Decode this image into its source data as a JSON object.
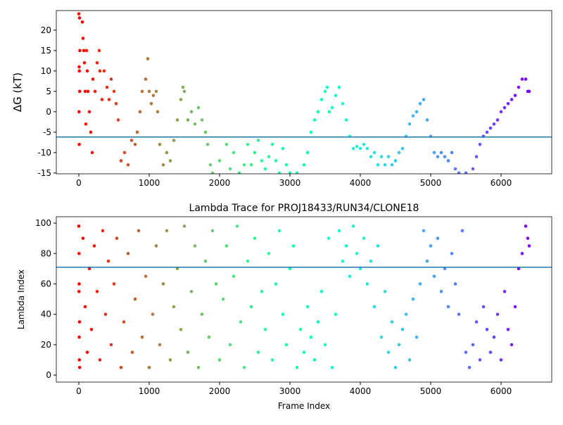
{
  "chart_data": [
    {
      "type": "scatter",
      "ylabel": "ΔG (kT)",
      "colormap": "rainbow_r",
      "clim": [
        0,
        6400
      ],
      "hline": -6.2,
      "hline_color": "#1f77b4",
      "xlim": [
        -320,
        6720
      ],
      "ylim": [
        -15.2,
        24.8
      ],
      "xticks": [
        0,
        1000,
        2000,
        3000,
        4000,
        5000,
        6000
      ],
      "yticks": [
        -15,
        -10,
        -5,
        0,
        5,
        10,
        15,
        20
      ],
      "x": [
        0,
        10,
        5,
        8,
        3,
        6,
        12,
        15,
        50,
        60,
        70,
        80,
        90,
        100,
        110,
        120,
        130,
        150,
        170,
        190,
        200,
        230,
        260,
        290,
        300,
        330,
        360,
        400,
        430,
        460,
        500,
        530,
        560,
        600,
        650,
        700,
        750,
        800,
        830,
        870,
        900,
        950,
        980,
        1000,
        1030,
        1060,
        1100,
        1120,
        1150,
        1200,
        1250,
        1300,
        1350,
        1400,
        1450,
        1480,
        1500,
        1550,
        1600,
        1650,
        1700,
        1750,
        1800,
        1830,
        1870,
        1900,
        2000,
        2100,
        2150,
        2200,
        2280,
        2350,
        2400,
        2450,
        2500,
        2550,
        2600,
        2650,
        2700,
        2750,
        2800,
        2850,
        2900,
        2950,
        3000,
        3100,
        3200,
        3250,
        3300,
        3350,
        3400,
        3450,
        3500,
        3530,
        3560,
        3600,
        3650,
        3700,
        3750,
        3800,
        3850,
        3900,
        3950,
        4000,
        4050,
        4100,
        4150,
        4200,
        4250,
        4300,
        4350,
        4400,
        4450,
        4500,
        4550,
        4600,
        4650,
        4700,
        4750,
        4800,
        4850,
        4900,
        4950,
        5000,
        5050,
        5100,
        5150,
        5200,
        5250,
        5300,
        5350,
        5400,
        5500,
        5600,
        5650,
        5700,
        5750,
        5800,
        5850,
        5900,
        5950,
        6000,
        6050,
        6100,
        6150,
        6200,
        6250,
        6300,
        6350,
        6380,
        6400
      ],
      "values": [
        24,
        23,
        11,
        10,
        0,
        -8,
        5,
        15,
        22,
        18,
        15,
        12,
        5,
        -3,
        15,
        10,
        5,
        0,
        -5,
        -10,
        8,
        5,
        12,
        15,
        10,
        3,
        10,
        6,
        3,
        8,
        5,
        2,
        -2,
        -12,
        -10,
        -13,
        -7,
        -8,
        -5,
        0,
        5,
        8,
        13,
        5,
        2,
        4,
        5,
        0,
        -8,
        -13,
        -10,
        -12,
        -7,
        -2,
        3,
        6,
        5,
        -2,
        0,
        -3,
        1,
        -2,
        -5,
        -8,
        -13,
        -15,
        -12,
        -8,
        -14,
        -10,
        -15,
        -13,
        -8,
        -13,
        -10,
        -7,
        -12,
        -14,
        -11,
        -8,
        -12,
        -15,
        -9,
        -13,
        -15,
        -15,
        -13,
        -10,
        -5,
        -2,
        0,
        3,
        5,
        6,
        0,
        1,
        4,
        6,
        2,
        -2,
        -6,
        -9,
        -8.5,
        -9,
        -8,
        -9,
        -11,
        -10,
        -13,
        -11,
        -13,
        -11,
        -13,
        -12,
        -10,
        -9,
        -6,
        -3,
        -1,
        0,
        2,
        3,
        -2,
        -6,
        -10,
        -11,
        -10,
        -11,
        -12,
        -10,
        -14,
        -15,
        -15,
        -14,
        -11,
        -8,
        -6,
        -5,
        -4,
        -3,
        -2,
        0,
        1,
        2,
        3,
        4,
        6,
        8,
        8,
        5,
        5
      ]
    },
    {
      "type": "scatter",
      "title": "Lambda Trace for PROJ18433/RUN34/CLONE18",
      "xlabel": "Frame Index",
      "ylabel": "Lambda Index",
      "colormap": "rainbow_r",
      "clim": [
        0,
        6400
      ],
      "hline": 71,
      "hline_color": "#1f77b4",
      "xlim": [
        -320,
        6720
      ],
      "ylim": [
        -4.6,
        104.2
      ],
      "xticks": [
        0,
        1000,
        2000,
        3000,
        4000,
        5000,
        6000
      ],
      "yticks": [
        0,
        20,
        40,
        60,
        80,
        100
      ],
      "x": [
        0,
        5,
        10,
        3,
        8,
        12,
        2,
        6,
        60,
        90,
        120,
        150,
        180,
        220,
        260,
        300,
        340,
        380,
        420,
        460,
        500,
        540,
        600,
        640,
        700,
        760,
        800,
        850,
        900,
        950,
        1000,
        1050,
        1100,
        1150,
        1200,
        1250,
        1300,
        1350,
        1400,
        1450,
        1500,
        1550,
        1600,
        1650,
        1700,
        1750,
        1800,
        1850,
        1900,
        1950,
        2000,
        2050,
        2100,
        2150,
        2200,
        2250,
        2300,
        2350,
        2400,
        2450,
        2500,
        2550,
        2600,
        2650,
        2700,
        2750,
        2800,
        2850,
        2900,
        2950,
        3000,
        3050,
        3100,
        3150,
        3200,
        3250,
        3300,
        3350,
        3400,
        3450,
        3500,
        3550,
        3600,
        3650,
        3700,
        3750,
        3800,
        3850,
        3900,
        3950,
        4000,
        4050,
        4100,
        4150,
        4200,
        4250,
        4300,
        4350,
        4400,
        4450,
        4500,
        4550,
        4600,
        4650,
        4700,
        4750,
        4800,
        4850,
        4900,
        4950,
        5000,
        5050,
        5100,
        5150,
        5200,
        5250,
        5300,
        5350,
        5400,
        5450,
        5500,
        5550,
        5600,
        5650,
        5700,
        5750,
        5800,
        5850,
        5900,
        5950,
        6000,
        6050,
        6100,
        6150,
        6200,
        6250,
        6300,
        6350,
        6380,
        6400
      ],
      "values": [
        98,
        60,
        35,
        80,
        10,
        5,
        55,
        25,
        90,
        45,
        15,
        70,
        30,
        85,
        55,
        10,
        95,
        40,
        75,
        20,
        60,
        90,
        5,
        35,
        80,
        15,
        50,
        95,
        25,
        65,
        5,
        40,
        85,
        20,
        60,
        95,
        10,
        45,
        70,
        30,
        98,
        15,
        55,
        85,
        5,
        40,
        75,
        25,
        95,
        60,
        10,
        50,
        85,
        20,
        65,
        98,
        35,
        5,
        75,
        45,
        90,
        15,
        55,
        30,
        80,
        10,
        60,
        95,
        40,
        20,
        70,
        85,
        5,
        30,
        15,
        45,
        25,
        10,
        35,
        55,
        20,
        90,
        5,
        40,
        95,
        75,
        85,
        65,
        98,
        80,
        70,
        90,
        60,
        75,
        45,
        85,
        25,
        55,
        15,
        35,
        5,
        20,
        30,
        40,
        10,
        50,
        25,
        60,
        95,
        75,
        85,
        65,
        90,
        55,
        70,
        45,
        80,
        60,
        40,
        95,
        15,
        5,
        20,
        35,
        10,
        45,
        30,
        15,
        25,
        40,
        10,
        55,
        30,
        20,
        45,
        70,
        80,
        98,
        90,
        85
      ]
    }
  ]
}
